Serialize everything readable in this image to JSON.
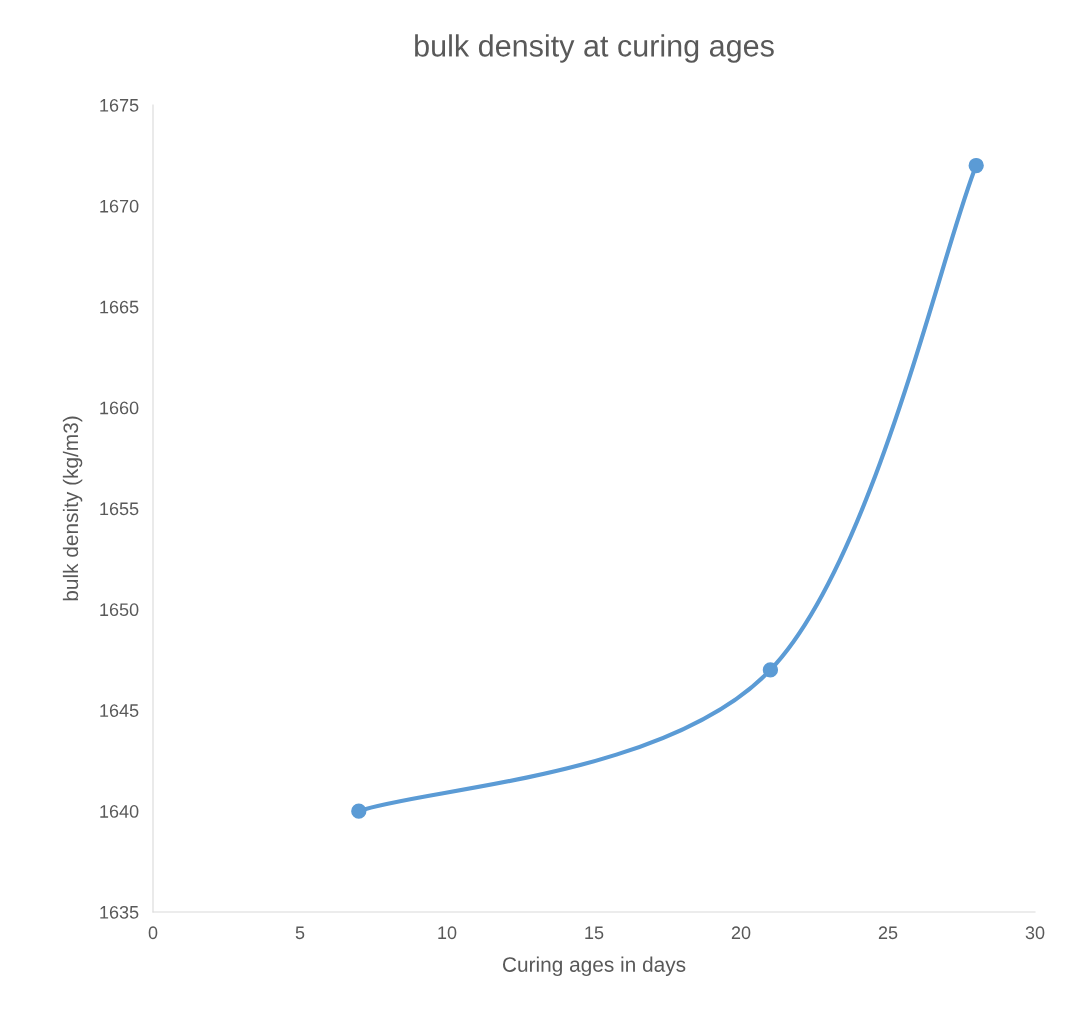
{
  "chart_data": {
    "type": "line",
    "title": "bulk density at curing ages",
    "xlabel": "Curing ages in days",
    "ylabel": "bulk density (kg/m3)",
    "x": [
      7,
      21,
      28
    ],
    "series": [
      {
        "color": "#5b9bd5",
        "values": [
          1640,
          1647,
          1672
        ]
      }
    ],
    "xlim": [
      0,
      30
    ],
    "xticks": [
      0,
      5,
      10,
      15,
      20,
      25,
      30
    ],
    "ylim": [
      1635,
      1675
    ],
    "yticks": [
      1635,
      1640,
      1645,
      1650,
      1655,
      1660,
      1665,
      1670,
      1675
    ],
    "grid": false,
    "marker": "circle",
    "line_style": "solid"
  }
}
